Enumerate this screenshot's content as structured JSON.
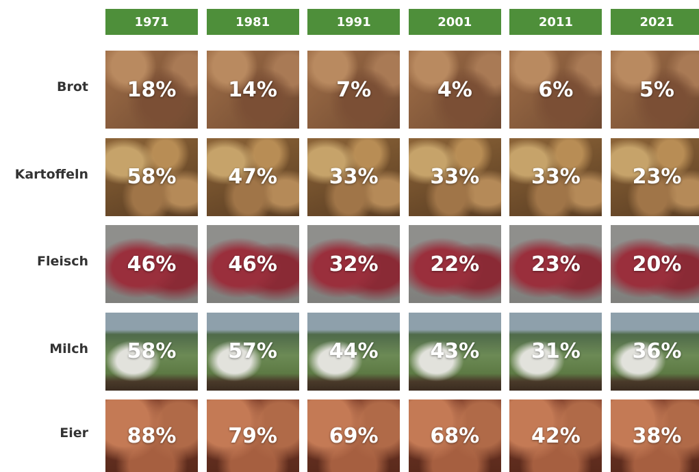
{
  "table": {
    "columns": [
      "1971",
      "1981",
      "1991",
      "2001",
      "2011",
      "2021"
    ],
    "rows": [
      {
        "label": "Brot",
        "cells": [
          "18%",
          "14%",
          "7%",
          "4%",
          "6%",
          "5%"
        ]
      },
      {
        "label": "Kartoffeln",
        "cells": [
          "58%",
          "47%",
          "33%",
          "33%",
          "33%",
          "23%"
        ]
      },
      {
        "label": "Fleisch",
        "cells": [
          "46%",
          "46%",
          "32%",
          "22%",
          "23%",
          "20%"
        ]
      },
      {
        "label": "Milch",
        "cells": [
          "58%",
          "57%",
          "44%",
          "43%",
          "31%",
          "36%"
        ]
      },
      {
        "label": "Eier",
        "cells": [
          "88%",
          "79%",
          "69%",
          "68%",
          "42%",
          "38%"
        ]
      }
    ]
  }
}
